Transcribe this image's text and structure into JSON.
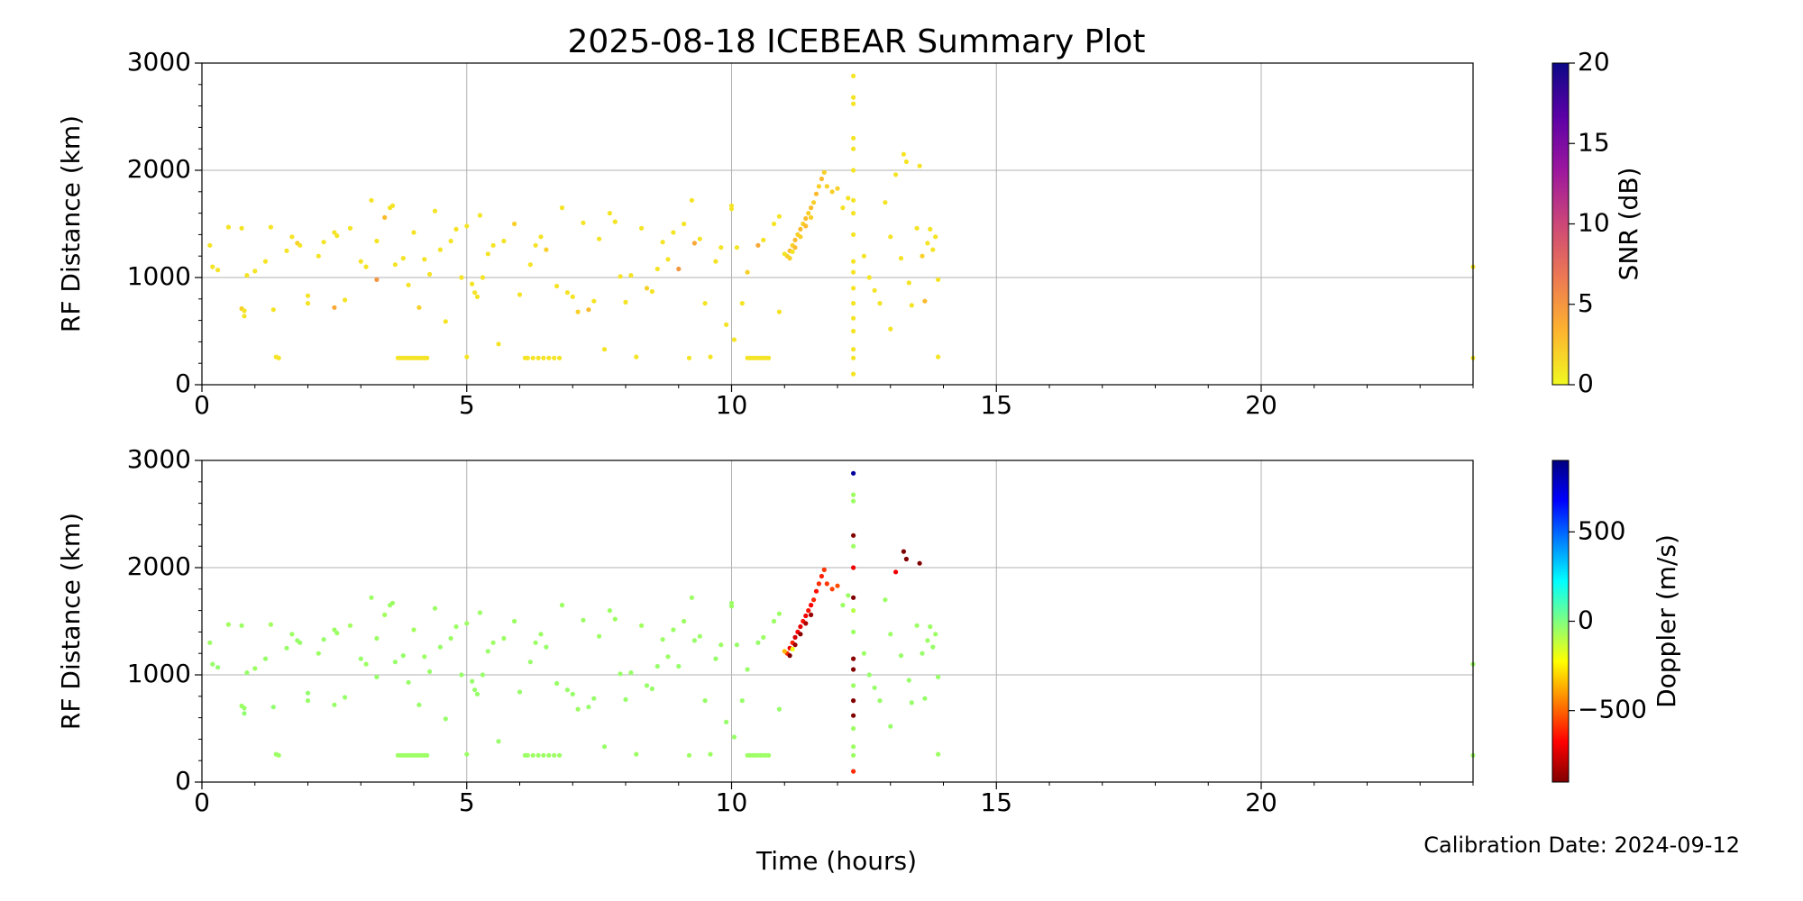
{
  "figure": {
    "title": "2025-08-18 ICEBEAR Summary Plot",
    "calibration": "Calibration Date: 2024-09-12"
  },
  "chart_data": [
    {
      "type": "scatter",
      "panel": "top",
      "xlabel": "Time (hours)",
      "ylabel": "RF Distance (km)",
      "xlim": [
        0,
        24
      ],
      "ylim": [
        0,
        3000
      ],
      "xticks": [
        0,
        5,
        10,
        15,
        20
      ],
      "yticks": [
        0,
        1000,
        2000,
        3000
      ],
      "grid": true,
      "color_by": "snr",
      "colorbar": {
        "label": "SNR (dB)",
        "range": [
          0,
          20
        ],
        "ticks": [
          0,
          5,
          10,
          15,
          20
        ],
        "tick_labels": [
          "0",
          "5",
          "10",
          "15",
          "20"
        ],
        "colormap": "plasma_r",
        "colors": [
          "#f0f921",
          "#fdb42f",
          "#ed7953",
          "#cc4778",
          "#9c179e",
          "#5c01a6",
          "#0d0887"
        ]
      }
    },
    {
      "type": "scatter",
      "panel": "bottom",
      "xlabel": "Time (hours)",
      "ylabel": "RF Distance (km)",
      "xlim": [
        0,
        24
      ],
      "ylim": [
        0,
        3000
      ],
      "xticks": [
        0,
        5,
        10,
        15,
        20
      ],
      "yticks": [
        0,
        1000,
        2000,
        3000
      ],
      "grid": true,
      "color_by": "doppler",
      "colorbar": {
        "label": "Doppler (m/s)",
        "range": [
          -900,
          900
        ],
        "ticks": [
          -500,
          0,
          500
        ],
        "tick_labels": [
          "−500",
          "0",
          "500"
        ],
        "colormap": "jet_r",
        "colors": [
          "#800000",
          "#ff0000",
          "#ff8000",
          "#ffff00",
          "#80ff80",
          "#00ffff",
          "#0080ff",
          "#0000ff",
          "#000080"
        ]
      }
    }
  ],
  "scatter_points": {
    "fields": [
      "time_h",
      "range_km",
      "snr_db",
      "doppler_ms"
    ],
    "points": [
      [
        0.15,
        1300,
        1,
        -50
      ],
      [
        0.2,
        1100,
        1,
        -40
      ],
      [
        0.3,
        1070,
        1,
        -30
      ],
      [
        0.5,
        1470,
        1,
        -60
      ],
      [
        0.75,
        1460,
        1,
        -50
      ],
      [
        0.75,
        710,
        2,
        -50
      ],
      [
        0.8,
        690,
        1,
        -40
      ],
      [
        0.8,
        640,
        1,
        -30
      ],
      [
        0.85,
        1020,
        1,
        -40
      ],
      [
        1.0,
        1060,
        1,
        -50
      ],
      [
        1.2,
        1150,
        1,
        -40
      ],
      [
        1.3,
        1470,
        1,
        -60
      ],
      [
        1.35,
        700,
        1,
        -30
      ],
      [
        1.4,
        260,
        1,
        -50
      ],
      [
        1.45,
        250,
        1,
        -50
      ],
      [
        1.6,
        1250,
        1,
        -40
      ],
      [
        1.7,
        1380,
        1,
        -50
      ],
      [
        1.8,
        1320,
        2,
        -40
      ],
      [
        1.85,
        1300,
        1,
        -40
      ],
      [
        2.0,
        830,
        1,
        -30
      ],
      [
        2.0,
        760,
        1,
        -40
      ],
      [
        2.2,
        1200,
        1,
        -50
      ],
      [
        2.3,
        1330,
        1,
        -40
      ],
      [
        2.5,
        720,
        4,
        -40
      ],
      [
        2.5,
        1420,
        1,
        -50
      ],
      [
        2.55,
        1390,
        1,
        -50
      ],
      [
        2.7,
        790,
        1,
        -40
      ],
      [
        2.8,
        1460,
        1,
        -60
      ],
      [
        3.0,
        1150,
        1,
        -40
      ],
      [
        3.1,
        1100,
        1,
        -50
      ],
      [
        3.2,
        1720,
        1,
        -50
      ],
      [
        3.3,
        980,
        5,
        -40
      ],
      [
        3.3,
        1340,
        1,
        -50
      ],
      [
        3.45,
        1560,
        3,
        -60
      ],
      [
        3.55,
        1650,
        1,
        -50
      ],
      [
        3.6,
        1670,
        1,
        -50
      ],
      [
        3.65,
        1120,
        1,
        -40
      ],
      [
        3.7,
        250,
        1,
        -50
      ],
      [
        3.75,
        250,
        1,
        -50
      ],
      [
        3.8,
        250,
        1,
        -50
      ],
      [
        3.85,
        250,
        1,
        -50
      ],
      [
        3.9,
        250,
        1,
        -50
      ],
      [
        3.95,
        250,
        1,
        -50
      ],
      [
        4.0,
        250,
        1,
        -50
      ],
      [
        4.05,
        250,
        1,
        -50
      ],
      [
        4.1,
        250,
        1,
        -50
      ],
      [
        4.15,
        250,
        1,
        -50
      ],
      [
        4.2,
        250,
        1,
        -50
      ],
      [
        4.25,
        250,
        1,
        -50
      ],
      [
        3.8,
        1180,
        1,
        -40
      ],
      [
        3.9,
        930,
        1,
        -40
      ],
      [
        4.0,
        1420,
        1,
        -60
      ],
      [
        4.1,
        720,
        2,
        -40
      ],
      [
        4.2,
        1170,
        1,
        -50
      ],
      [
        4.3,
        1030,
        1,
        -40
      ],
      [
        4.4,
        1620,
        1,
        -50
      ],
      [
        4.5,
        1260,
        1,
        -40
      ],
      [
        4.6,
        590,
        1,
        -40
      ],
      [
        4.7,
        1340,
        1,
        -50
      ],
      [
        4.8,
        1450,
        1,
        -50
      ],
      [
        4.9,
        1000,
        1,
        -40
      ],
      [
        5.0,
        1480,
        1,
        -50
      ],
      [
        5.0,
        260,
        1,
        -50
      ],
      [
        5.1,
        940,
        1,
        -40
      ],
      [
        5.15,
        860,
        1,
        -40
      ],
      [
        5.2,
        820,
        1,
        -40
      ],
      [
        5.25,
        1580,
        1,
        -50
      ],
      [
        5.3,
        1000,
        1,
        -40
      ],
      [
        5.4,
        1220,
        1,
        -40
      ],
      [
        5.5,
        1300,
        1,
        -50
      ],
      [
        5.6,
        380,
        1,
        -40
      ],
      [
        5.7,
        1340,
        1,
        -50
      ],
      [
        5.9,
        1500,
        2,
        -50
      ],
      [
        6.0,
        840,
        1,
        -40
      ],
      [
        6.1,
        250,
        1,
        -50
      ],
      [
        6.15,
        250,
        1,
        -50
      ],
      [
        6.25,
        250,
        1,
        -50
      ],
      [
        6.35,
        250,
        1,
        -50
      ],
      [
        6.45,
        250,
        1,
        -50
      ],
      [
        6.55,
        250,
        1,
        -50
      ],
      [
        6.65,
        250,
        1,
        -50
      ],
      [
        6.75,
        250,
        1,
        -50
      ],
      [
        6.2,
        1120,
        1,
        -40
      ],
      [
        6.3,
        1300,
        1,
        -50
      ],
      [
        6.4,
        1380,
        1,
        -50
      ],
      [
        6.5,
        1260,
        2,
        -40
      ],
      [
        6.7,
        920,
        1,
        -40
      ],
      [
        6.8,
        1650,
        1,
        -50
      ],
      [
        6.9,
        860,
        1,
        -40
      ],
      [
        7.0,
        820,
        1,
        -40
      ],
      [
        7.1,
        680,
        2,
        -50
      ],
      [
        7.2,
        1510,
        1,
        -50
      ],
      [
        7.3,
        700,
        3,
        -40
      ],
      [
        7.4,
        780,
        1,
        -40
      ],
      [
        7.5,
        1360,
        1,
        -50
      ],
      [
        7.6,
        330,
        1,
        -40
      ],
      [
        7.7,
        1600,
        1,
        -50
      ],
      [
        7.8,
        1520,
        1,
        -50
      ],
      [
        7.9,
        1010,
        1,
        -40
      ],
      [
        8.0,
        770,
        1,
        -40
      ],
      [
        8.1,
        1020,
        1,
        -40
      ],
      [
        8.2,
        260,
        1,
        -50
      ],
      [
        8.3,
        1460,
        1,
        -60
      ],
      [
        8.4,
        900,
        2,
        -40
      ],
      [
        8.5,
        870,
        1,
        -40
      ],
      [
        8.6,
        1080,
        1,
        -40
      ],
      [
        8.7,
        1330,
        1,
        -50
      ],
      [
        8.8,
        1170,
        1,
        -50
      ],
      [
        8.9,
        1420,
        1,
        -50
      ],
      [
        9.0,
        1080,
        5,
        -40
      ],
      [
        9.1,
        1500,
        1,
        -50
      ],
      [
        9.2,
        250,
        1,
        -50
      ],
      [
        9.25,
        1720,
        1,
        -50
      ],
      [
        9.3,
        1320,
        4,
        -40
      ],
      [
        9.4,
        1360,
        1,
        -50
      ],
      [
        9.5,
        760,
        1,
        -40
      ],
      [
        9.6,
        260,
        1,
        -50
      ],
      [
        9.7,
        1150,
        1,
        -40
      ],
      [
        9.8,
        1280,
        1,
        -50
      ],
      [
        9.9,
        560,
        1,
        -40
      ],
      [
        10.0,
        1640,
        1,
        -50
      ],
      [
        10.0,
        1670,
        1,
        -50
      ],
      [
        10.05,
        420,
        1,
        -40
      ],
      [
        10.1,
        1280,
        1,
        -40
      ],
      [
        10.2,
        760,
        1,
        -40
      ],
      [
        10.3,
        250,
        1,
        -50
      ],
      [
        10.35,
        250,
        1,
        -50
      ],
      [
        10.4,
        250,
        1,
        -50
      ],
      [
        10.45,
        250,
        1,
        -50
      ],
      [
        10.5,
        250,
        1,
        -50
      ],
      [
        10.55,
        250,
        1,
        -50
      ],
      [
        10.6,
        250,
        1,
        -50
      ],
      [
        10.65,
        250,
        1,
        -50
      ],
      [
        10.7,
        250,
        1,
        -50
      ],
      [
        10.3,
        1050,
        2,
        -40
      ],
      [
        10.5,
        1300,
        4,
        -40
      ],
      [
        10.6,
        1350,
        1,
        -50
      ],
      [
        10.8,
        1500,
        1,
        -50
      ],
      [
        10.9,
        680,
        1,
        -40
      ],
      [
        10.9,
        1570,
        1,
        -50
      ],
      [
        11.05,
        1200,
        2,
        -600
      ],
      [
        11.1,
        1250,
        3,
        -700
      ],
      [
        11.15,
        1300,
        2,
        -620
      ],
      [
        11.2,
        1350,
        3,
        -750
      ],
      [
        11.25,
        1400,
        2,
        -680
      ],
      [
        11.3,
        1450,
        3,
        -720
      ],
      [
        11.35,
        1500,
        2,
        -650
      ],
      [
        11.4,
        1550,
        3,
        -700
      ],
      [
        11.45,
        1600,
        2,
        -640
      ],
      [
        11.5,
        1650,
        3,
        -680
      ],
      [
        11.55,
        1700,
        2,
        -610
      ],
      [
        11.6,
        1780,
        3,
        -650
      ],
      [
        11.65,
        1850,
        2,
        -600
      ],
      [
        11.7,
        1920,
        3,
        -620
      ],
      [
        11.75,
        1980,
        2,
        -580
      ],
      [
        11.1,
        1180,
        2,
        -900
      ],
      [
        11.2,
        1280,
        3,
        -850
      ],
      [
        11.3,
        1380,
        2,
        -880
      ],
      [
        11.4,
        1480,
        3,
        -820
      ],
      [
        11.5,
        1560,
        2,
        -860
      ],
      [
        11.0,
        1220,
        1,
        -350
      ],
      [
        11.15,
        1240,
        1,
        -200
      ],
      [
        11.8,
        1850,
        2,
        -580
      ],
      [
        11.9,
        1800,
        2,
        -560
      ],
      [
        12.0,
        1830,
        2,
        -540
      ],
      [
        12.1,
        1650,
        1,
        -50
      ],
      [
        12.2,
        1740,
        1,
        -50
      ],
      [
        12.3,
        2880,
        1,
        850
      ],
      [
        12.3,
        2680,
        1,
        -50
      ],
      [
        12.3,
        2620,
        1,
        -50
      ],
      [
        12.3,
        2300,
        1,
        -900
      ],
      [
        12.3,
        2200,
        1,
        -50
      ],
      [
        12.3,
        2000,
        1,
        -700
      ],
      [
        12.3,
        1720,
        1,
        -900
      ],
      [
        12.3,
        1600,
        1,
        -100
      ],
      [
        12.3,
        1400,
        1,
        -50
      ],
      [
        12.3,
        1150,
        1,
        -880
      ],
      [
        12.3,
        1050,
        1,
        -900
      ],
      [
        12.3,
        900,
        1,
        -50
      ],
      [
        12.3,
        760,
        1,
        -900
      ],
      [
        12.3,
        620,
        1,
        -900
      ],
      [
        12.3,
        500,
        1,
        -50
      ],
      [
        12.3,
        330,
        1,
        -50
      ],
      [
        12.3,
        250,
        1,
        -50
      ],
      [
        12.3,
        100,
        1,
        -600
      ],
      [
        12.5,
        1200,
        1,
        -50
      ],
      [
        12.6,
        1000,
        1,
        -40
      ],
      [
        12.7,
        880,
        1,
        -40
      ],
      [
        12.8,
        760,
        1,
        -40
      ],
      [
        12.9,
        1700,
        1,
        -50
      ],
      [
        13.0,
        520,
        1,
        -40
      ],
      [
        13.0,
        1380,
        1,
        -50
      ],
      [
        13.1,
        1960,
        1,
        -700
      ],
      [
        13.2,
        1180,
        1,
        -40
      ],
      [
        13.25,
        2150,
        1,
        -900
      ],
      [
        13.3,
        2080,
        1,
        -900
      ],
      [
        13.35,
        950,
        1,
        -40
      ],
      [
        13.4,
        740,
        1,
        -40
      ],
      [
        13.5,
        1460,
        1,
        -50
      ],
      [
        13.55,
        2040,
        1,
        -900
      ],
      [
        13.6,
        1200,
        2,
        -40
      ],
      [
        13.65,
        780,
        3,
        -40
      ],
      [
        13.7,
        1320,
        1,
        -50
      ],
      [
        13.75,
        1450,
        1,
        -50
      ],
      [
        13.8,
        1260,
        1,
        -40
      ],
      [
        13.85,
        1380,
        1,
        -50
      ],
      [
        13.9,
        980,
        1,
        -40
      ],
      [
        13.9,
        260,
        1,
        -50
      ],
      [
        24.0,
        1100,
        1,
        -50
      ],
      [
        24.0,
        250,
        1,
        -50
      ]
    ]
  }
}
